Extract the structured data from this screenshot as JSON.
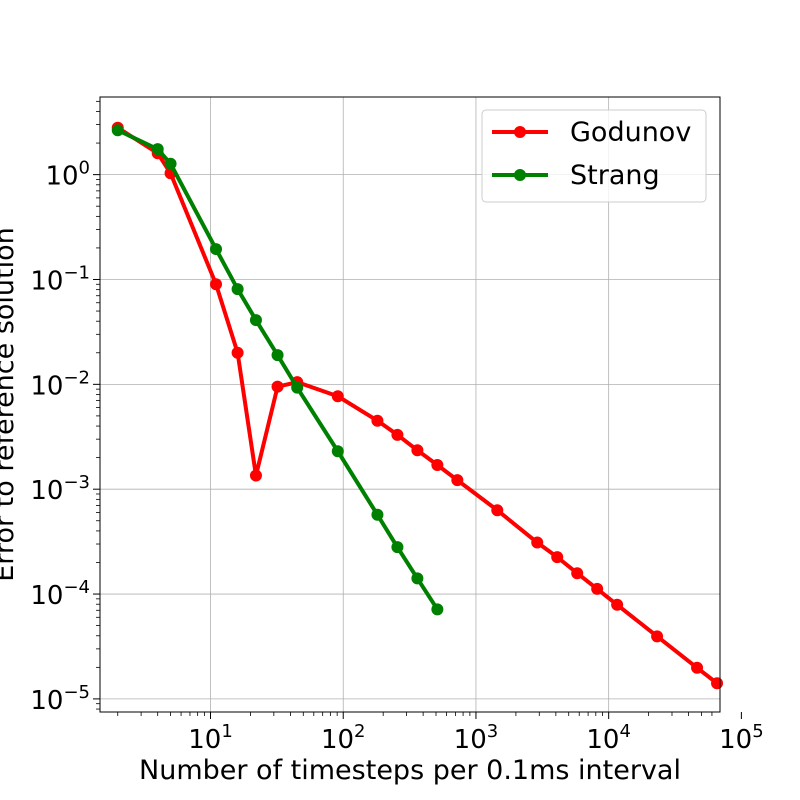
{
  "chart_data": {
    "type": "line",
    "title": "",
    "xlabel": "Number of timesteps per 0.1ms interval",
    "ylabel": "Error to reference solution",
    "xscale": "log",
    "yscale": "log",
    "xlim": [
      1.47,
      69000
    ],
    "ylim": [
      7.5e-06,
      5.5
    ],
    "grid": true,
    "legend_position": "top-right",
    "x_ticks": [
      {
        "base": "10",
        "exp": "1",
        "value": 10
      },
      {
        "base": "10",
        "exp": "2",
        "value": 100
      },
      {
        "base": "10",
        "exp": "3",
        "value": 1000
      },
      {
        "base": "10",
        "exp": "4",
        "value": 10000
      },
      {
        "base": "10",
        "exp": "5",
        "value": 100000
      }
    ],
    "y_ticks": [
      {
        "base": "10",
        "exp": "0",
        "value": 1
      },
      {
        "base": "10",
        "exp": "−1",
        "value": 0.1
      },
      {
        "base": "10",
        "exp": "−2",
        "value": 0.01
      },
      {
        "base": "10",
        "exp": "−3",
        "value": 0.001
      },
      {
        "base": "10",
        "exp": "−4",
        "value": 0.0001
      },
      {
        "base": "10",
        "exp": "−5",
        "value": 1e-05
      }
    ],
    "series": [
      {
        "name": "Godunov",
        "color": "#ff0000",
        "x": [
          2,
          4,
          5,
          11,
          16,
          22,
          32,
          45,
          91,
          181,
          256,
          362,
          512,
          724,
          1448,
          2896,
          4096,
          5793,
          8192,
          11585,
          23170,
          46341,
          65536
        ],
        "y": [
          2.8,
          1.6,
          1.03,
          0.09,
          0.02,
          0.00135,
          0.0095,
          0.0105,
          0.0077,
          0.0045,
          0.0033,
          0.00235,
          0.0017,
          0.00122,
          0.00063,
          0.00031,
          0.000225,
          0.000158,
          0.000112,
          7.9e-05,
          3.95e-05,
          1.98e-05,
          1.41e-05
        ]
      },
      {
        "name": "Strang",
        "color": "#008000",
        "x": [
          2,
          4,
          5,
          11,
          16,
          22,
          32,
          45,
          91,
          181,
          256,
          362,
          512
        ],
        "y": [
          2.65,
          1.75,
          1.27,
          0.195,
          0.081,
          0.041,
          0.019,
          0.0093,
          0.0023,
          0.00057,
          0.00028,
          0.000141,
          7.15e-05
        ]
      }
    ]
  }
}
